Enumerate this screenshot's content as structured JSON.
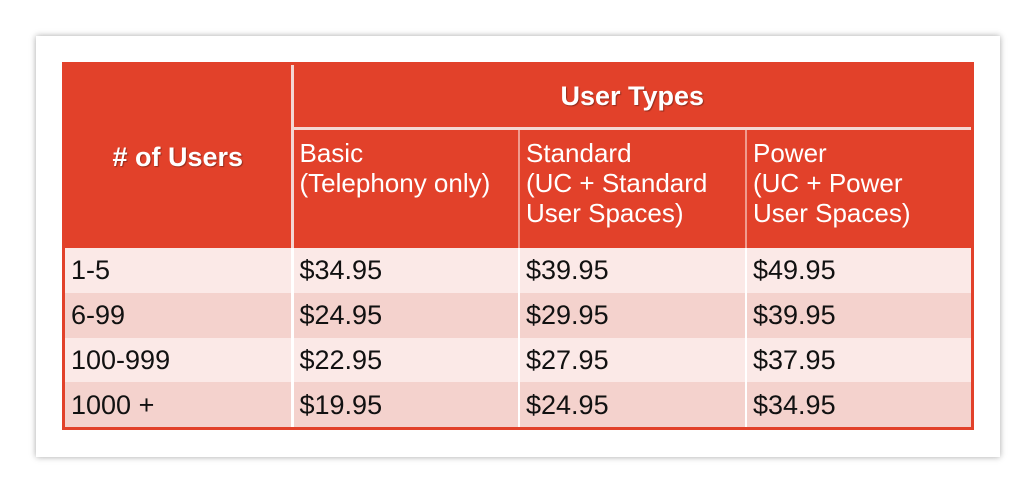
{
  "table": {
    "users_header": "# of Users",
    "types_header": "User Types",
    "types": [
      {
        "line1": "Basic",
        "line2": "(Telephony only)",
        "line3": ""
      },
      {
        "line1": "Standard",
        "line2": "(UC + Standard",
        "line3": "User Spaces)"
      },
      {
        "line1": "Power",
        "line2": "(UC + Power",
        "line3": "User Spaces)"
      }
    ],
    "rows": [
      {
        "users": "1-5",
        "basic": "$34.95",
        "standard": "$39.95",
        "power": "$49.95"
      },
      {
        "users": "6-99",
        "basic": "$24.95",
        "standard": "$29.95",
        "power": "$39.95"
      },
      {
        "users": "100-999",
        "basic": "$22.95",
        "standard": "$27.95",
        "power": "$37.95"
      },
      {
        "users": "1000 +",
        "basic": "$19.95",
        "standard": "$24.95",
        "power": "$34.95"
      }
    ]
  },
  "colors": {
    "header_red": "#e2412a",
    "row_light": "#fbe9e7",
    "row_dark": "#f4d2cd"
  }
}
